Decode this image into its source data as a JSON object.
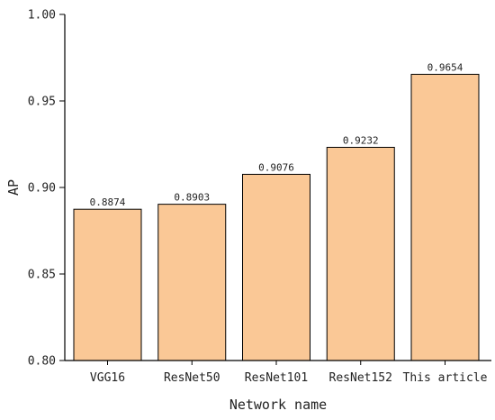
{
  "chart_data": {
    "type": "bar",
    "categories": [
      "VGG16",
      "ResNet50",
      "ResNet101",
      "ResNet152",
      "This article"
    ],
    "values": [
      0.8874,
      0.8903,
      0.9076,
      0.9232,
      0.9654
    ],
    "value_labels": [
      "0.8874",
      "0.8903",
      "0.9076",
      "0.9232",
      "0.9654"
    ],
    "title": "",
    "xlabel": "Network name",
    "ylabel": "AP",
    "ylim": [
      0.8,
      1.0
    ],
    "yticks": [
      0.8,
      0.85,
      0.9,
      0.95,
      1.0
    ],
    "ytick_labels": [
      "0.80",
      "0.85",
      "0.90",
      "0.95",
      "1.00"
    ],
    "grid": false,
    "legend": "none",
    "colors": {
      "bar_fill": "#fac896",
      "bar_edge": "#000000",
      "axis": "#000000"
    }
  }
}
